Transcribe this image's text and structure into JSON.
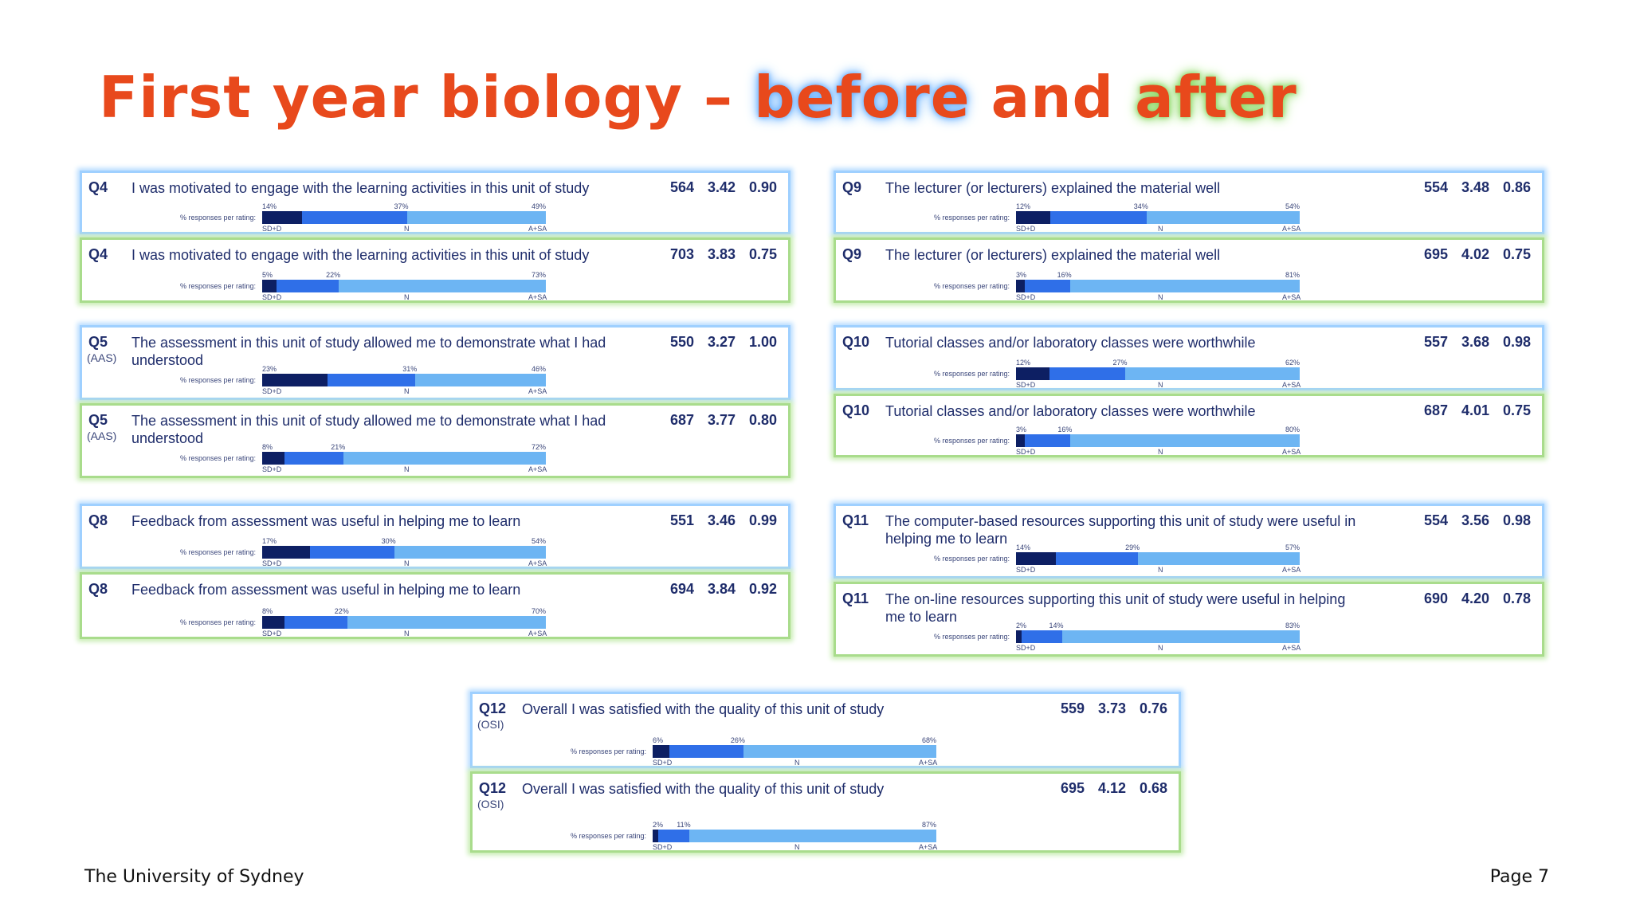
{
  "title": {
    "part1": "First year biology – ",
    "before": "before",
    "middle": " and ",
    "after": "after"
  },
  "rating_label": "% responses per rating:",
  "axis": {
    "low": "SD+D",
    "mid": "N",
    "high": "A+SA"
  },
  "colors": {
    "title": "#e8491c",
    "before_glow": "#9fd0ff",
    "after_glow": "#a9dc8c",
    "disagree": "#0d1f63",
    "neutral": "#2f6fe8",
    "agree": "#6db5f3"
  },
  "panels": [
    {
      "id": "Q4",
      "sub": "",
      "phase": "before",
      "text": "I was motivated to engage with the learning activities in this unit of study",
      "n": "564",
      "mean": "3.42",
      "sd": "0.90",
      "dist": {
        "d": 14,
        "n": 37,
        "a": 49
      },
      "pct": {
        "d": "14%",
        "n": "37%",
        "a": "49%"
      }
    },
    {
      "id": "Q4",
      "sub": "",
      "phase": "after",
      "text": "I was motivated to engage with the learning activities in this unit of study",
      "n": "703",
      "mean": "3.83",
      "sd": "0.75",
      "dist": {
        "d": 5,
        "n": 22,
        "a": 73
      },
      "pct": {
        "d": "5%",
        "n": "22%",
        "a": "73%"
      }
    },
    {
      "id": "Q5",
      "sub": "(AAS)",
      "phase": "before",
      "text": "The assessment in this unit of study allowed me to demonstrate what I had understood",
      "n": "550",
      "mean": "3.27",
      "sd": "1.00",
      "dist": {
        "d": 23,
        "n": 31,
        "a": 46
      },
      "pct": {
        "d": "23%",
        "n": "31%",
        "a": "46%"
      }
    },
    {
      "id": "Q5",
      "sub": "(AAS)",
      "phase": "after",
      "text": "The assessment in this unit of study allowed me to demonstrate what I had understood",
      "n": "687",
      "mean": "3.77",
      "sd": "0.80",
      "dist": {
        "d": 8,
        "n": 21,
        "a": 72
      },
      "pct": {
        "d": "8%",
        "n": "21%",
        "a": "72%"
      }
    },
    {
      "id": "Q8",
      "sub": "",
      "phase": "before",
      "text": "Feedback from assessment was useful in helping me to learn",
      "n": "551",
      "mean": "3.46",
      "sd": "0.99",
      "dist": {
        "d": 17,
        "n": 30,
        "a": 54
      },
      "pct": {
        "d": "17%",
        "n": "30%",
        "a": "54%"
      }
    },
    {
      "id": "Q8",
      "sub": "",
      "phase": "after",
      "text": "Feedback from assessment was useful in helping me to learn",
      "n": "694",
      "mean": "3.84",
      "sd": "0.92",
      "dist": {
        "d": 8,
        "n": 22,
        "a": 70
      },
      "pct": {
        "d": "8%",
        "n": "22%",
        "a": "70%"
      }
    },
    {
      "id": "Q9",
      "sub": "",
      "phase": "before",
      "text": "The lecturer (or lecturers) explained the material well",
      "n": "554",
      "mean": "3.48",
      "sd": "0.86",
      "dist": {
        "d": 12,
        "n": 34,
        "a": 54
      },
      "pct": {
        "d": "12%",
        "n": "34%",
        "a": "54%"
      }
    },
    {
      "id": "Q9",
      "sub": "",
      "phase": "after",
      "text": "The lecturer (or lecturers) explained the material well",
      "n": "695",
      "mean": "4.02",
      "sd": "0.75",
      "dist": {
        "d": 3,
        "n": 16,
        "a": 81
      },
      "pct": {
        "d": "3%",
        "n": "16%",
        "a": "81%"
      }
    },
    {
      "id": "Q10",
      "sub": "",
      "phase": "before",
      "text": "Tutorial classes and/or laboratory classes were worthwhile",
      "n": "557",
      "mean": "3.68",
      "sd": "0.98",
      "dist": {
        "d": 12,
        "n": 27,
        "a": 62
      },
      "pct": {
        "d": "12%",
        "n": "27%",
        "a": "62%"
      }
    },
    {
      "id": "Q10",
      "sub": "",
      "phase": "after",
      "text": "Tutorial classes and/or laboratory classes were worthwhile",
      "n": "687",
      "mean": "4.01",
      "sd": "0.75",
      "dist": {
        "d": 3,
        "n": 16,
        "a": 80
      },
      "pct": {
        "d": "3%",
        "n": "16%",
        "a": "80%"
      }
    },
    {
      "id": "Q11",
      "sub": "",
      "phase": "before",
      "text": "The computer-based resources supporting this unit of study were useful in helping me to learn",
      "n": "554",
      "mean": "3.56",
      "sd": "0.98",
      "dist": {
        "d": 14,
        "n": 29,
        "a": 57
      },
      "pct": {
        "d": "14%",
        "n": "29%",
        "a": "57%"
      }
    },
    {
      "id": "Q11",
      "sub": "",
      "phase": "after",
      "text": "The on-line resources supporting this unit of study were useful in helping me to learn",
      "n": "690",
      "mean": "4.20",
      "sd": "0.78",
      "dist": {
        "d": 2,
        "n": 14,
        "a": 83
      },
      "pct": {
        "d": "2%",
        "n": "14%",
        "a": "83%"
      }
    },
    {
      "id": "Q12",
      "sub": "(OSI)",
      "phase": "before",
      "text": "Overall I was satisfied with the quality of this unit of study",
      "n": "559",
      "mean": "3.73",
      "sd": "0.76",
      "dist": {
        "d": 6,
        "n": 26,
        "a": 68
      },
      "pct": {
        "d": "6%",
        "n": "26%",
        "a": "68%"
      }
    },
    {
      "id": "Q12",
      "sub": "(OSI)",
      "phase": "after",
      "text": "Overall I was satisfied with the quality of this unit of study",
      "n": "695",
      "mean": "4.12",
      "sd": "0.68",
      "dist": {
        "d": 2,
        "n": 11,
        "a": 87
      },
      "pct": {
        "d": "2%",
        "n": "11%",
        "a": "87%"
      }
    }
  ],
  "footer": {
    "left": "The University of Sydney",
    "right": "Page 7"
  }
}
